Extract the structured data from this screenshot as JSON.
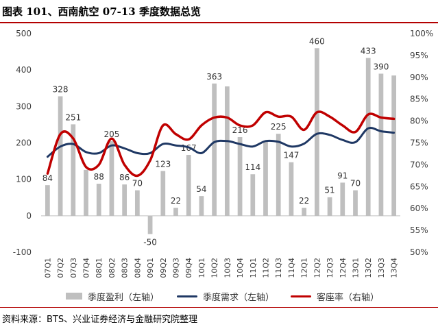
{
  "title": "图表 101、西南航空 07-13 季度数据总览",
  "source": "资料来源：BTS、兴业证券经济与金融研究院整理",
  "colors": {
    "bar": "#bfbfbf",
    "demand": "#1f3864",
    "load": "#c00000",
    "accent_rule": "#b30000"
  },
  "chart_data": {
    "type": "bar+line",
    "title": "西南航空 07-13 季度数据总览",
    "categories": [
      "07Q1",
      "07Q2",
      "07Q3",
      "07Q4",
      "08Q1",
      "08Q2",
      "08Q3",
      "08Q4",
      "09Q1",
      "09Q2",
      "09Q3",
      "09Q4",
      "10Q1",
      "10Q2",
      "10Q3",
      "10Q4",
      "11Q1",
      "11Q2",
      "11Q3",
      "11Q4",
      "12Q1",
      "12Q2",
      "12Q3",
      "12Q4",
      "13Q1",
      "13Q2",
      "13Q3",
      "13Q4"
    ],
    "left_axis": {
      "min": -100,
      "max": 500,
      "ticks": [
        -100,
        0,
        100,
        200,
        300,
        400,
        500
      ]
    },
    "right_axis": {
      "min": 50,
      "max": 100,
      "ticks": [
        "50%",
        "55%",
        "60%",
        "65%",
        "70%",
        "75%",
        "80%",
        "85%",
        "90%",
        "95%",
        "100%"
      ]
    },
    "series": [
      {
        "name": "季度盈利（左轴）",
        "type": "bar",
        "axis": "left",
        "values": [
          84,
          328,
          251,
          126,
          88,
          205,
          86,
          70,
          -50,
          123,
          22,
          167,
          54,
          363,
          355,
          216,
          114,
          205,
          225,
          147,
          22,
          460,
          51,
          91,
          70,
          433,
          390,
          385
        ],
        "labels": [
          "84",
          "328",
          "251",
          "",
          "88",
          "205",
          "86",
          "70",
          "-50",
          "123",
          "22",
          "167",
          "54",
          "363",
          "",
          "216",
          "114",
          "",
          "225",
          "147",
          "22",
          "460",
          "51",
          "91",
          "70",
          "433",
          "390",
          ""
        ]
      },
      {
        "name": "季度需求（左轴）",
        "type": "line",
        "axis": "left",
        "values": [
          162,
          190,
          197,
          175,
          172,
          193,
          185,
          172,
          172,
          197,
          193,
          188,
          172,
          202,
          205,
          197,
          190,
          205,
          203,
          190,
          198,
          225,
          222,
          208,
          202,
          240,
          232,
          228
        ]
      },
      {
        "name": "客座率（右轴）",
        "type": "line",
        "axis": "right",
        "values": [
          68.0,
          77.0,
          76.0,
          69.5,
          70.0,
          76.0,
          70.0,
          67.5,
          71.0,
          79.0,
          77.0,
          75.8,
          79.0,
          80.8,
          80.8,
          79.0,
          79.0,
          82.0,
          81.0,
          81.0,
          78.0,
          82.0,
          81.0,
          79.0,
          77.5,
          81.5,
          80.8,
          80.5
        ]
      }
    ]
  }
}
